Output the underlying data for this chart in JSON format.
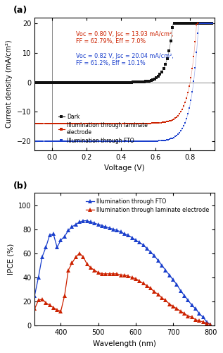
{
  "panel_a": {
    "title": "(a)",
    "xlabel": "Voltage (V)",
    "ylabel": "Current density (mA/cm²)",
    "xlim": [
      -0.1,
      0.94
    ],
    "ylim": [
      -23,
      22
    ],
    "yticks": [
      -20,
      -10,
      0,
      10,
      20
    ],
    "xticks": [
      0.0,
      0.2,
      0.4,
      0.6,
      0.8
    ],
    "annotation1": "Voc = 0.80 V, Jsc = 13.93 mA/cm²,\nFF = 62.79%, Eff = 7.0%",
    "annotation2": "Voc = 0.82 V, Jsc = 20.04 mA/cm²,\nFF = 61.2%, Eff = 10.1%",
    "ann1_color": "#cc2200",
    "ann2_color": "#1a3fcc",
    "dark_color": "#111111",
    "laminate_color": "#cc2200",
    "fto_color": "#1a3fcc"
  },
  "panel_b": {
    "title": "(b)",
    "xlabel": "Wavelength (nm)",
    "ylabel": "IPCE (%)",
    "xlim": [
      330,
      810
    ],
    "ylim": [
      0,
      110
    ],
    "yticks": [
      0,
      20,
      40,
      60,
      80,
      100
    ],
    "xticks": [
      400,
      500,
      600,
      700,
      800
    ],
    "fto_color": "#1a3fcc",
    "laminate_color": "#cc2200",
    "fto_label": "Illumination through FTO",
    "laminate_label": "Illumination through laminate electrode"
  }
}
